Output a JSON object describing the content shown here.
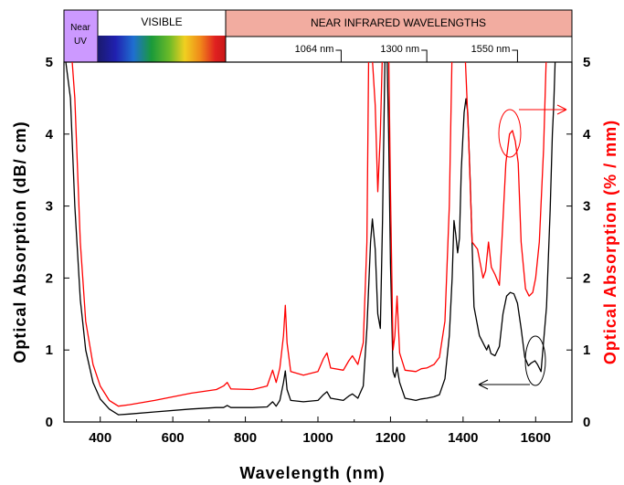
{
  "chart_data": {
    "type": "line",
    "xlabel": "Wavelength (nm)",
    "ylabel_left": "Optical Absorption (dB/ cm)",
    "ylabel_right": "Optical Absorption (% / mm)",
    "xlim": [
      300,
      1700
    ],
    "ylim_left": [
      0,
      5
    ],
    "ylim_right": [
      0,
      5
    ],
    "x_ticks": [
      "400",
      "600",
      "800",
      "1000",
      "1200",
      "1400",
      "1600"
    ],
    "y_ticks_left": [
      "0",
      "1",
      "2",
      "3",
      "4",
      "5"
    ],
    "y_ticks_right": [
      "0",
      "1",
      "2",
      "3",
      "4",
      "5"
    ],
    "grid": false,
    "bands": [
      {
        "label": "Near UV",
        "range": [
          300,
          345
        ],
        "color": "#cc99ff"
      },
      {
        "label": "VISIBLE",
        "range": [
          345,
          750
        ],
        "spectrum": true
      },
      {
        "label": "NEAR INFRARED WAVELENGTHS",
        "range": [
          750,
          1700
        ],
        "color": "#f2aca0"
      }
    ],
    "wavelength_markers": [
      {
        "label": "1064 nm",
        "x": 1064
      },
      {
        "label": "1300 nm",
        "x": 1300
      },
      {
        "label": "1550 nm",
        "x": 1550
      }
    ],
    "series": [
      {
        "color": "#000000",
        "axis": "left",
        "points": [
          [
            300,
            5.2
          ],
          [
            318,
            4.5
          ],
          [
            330,
            3.0
          ],
          [
            345,
            1.7
          ],
          [
            360,
            1.0
          ],
          [
            380,
            0.55
          ],
          [
            400,
            0.32
          ],
          [
            425,
            0.18
          ],
          [
            450,
            0.1
          ],
          [
            480,
            0.11
          ],
          [
            550,
            0.14
          ],
          [
            650,
            0.18
          ],
          [
            720,
            0.2
          ],
          [
            740,
            0.2
          ],
          [
            750,
            0.23
          ],
          [
            760,
            0.2
          ],
          [
            820,
            0.2
          ],
          [
            860,
            0.21
          ],
          [
            875,
            0.28
          ],
          [
            885,
            0.22
          ],
          [
            895,
            0.3
          ],
          [
            905,
            0.55
          ],
          [
            910,
            0.71
          ],
          [
            915,
            0.45
          ],
          [
            925,
            0.3
          ],
          [
            960,
            0.28
          ],
          [
            1000,
            0.3
          ],
          [
            1015,
            0.38
          ],
          [
            1025,
            0.42
          ],
          [
            1035,
            0.33
          ],
          [
            1070,
            0.3
          ],
          [
            1085,
            0.36
          ],
          [
            1095,
            0.39
          ],
          [
            1110,
            0.33
          ],
          [
            1125,
            0.5
          ],
          [
            1135,
            1.3
          ],
          [
            1145,
            2.5
          ],
          [
            1150,
            2.82
          ],
          [
            1158,
            2.4
          ],
          [
            1165,
            1.5
          ],
          [
            1172,
            1.3
          ],
          [
            1178,
            2.8
          ],
          [
            1185,
            5.2
          ],
          [
            1190,
            5.2
          ],
          [
            1195,
            4.0
          ],
          [
            1200,
            2.2
          ],
          [
            1207,
            0.7
          ],
          [
            1212,
            0.62
          ],
          [
            1218,
            0.76
          ],
          [
            1225,
            0.55
          ],
          [
            1240,
            0.33
          ],
          [
            1270,
            0.3
          ],
          [
            1285,
            0.32
          ],
          [
            1300,
            0.33
          ],
          [
            1320,
            0.35
          ],
          [
            1335,
            0.38
          ],
          [
            1350,
            0.6
          ],
          [
            1362,
            1.2
          ],
          [
            1370,
            2.0
          ],
          [
            1375,
            2.8
          ],
          [
            1380,
            2.6
          ],
          [
            1385,
            2.35
          ],
          [
            1390,
            2.55
          ],
          [
            1395,
            3.5
          ],
          [
            1403,
            4.3
          ],
          [
            1408,
            4.49
          ],
          [
            1413,
            4.3
          ],
          [
            1420,
            3.3
          ],
          [
            1430,
            1.6
          ],
          [
            1445,
            1.2
          ],
          [
            1460,
            1.05
          ],
          [
            1465,
            1.0
          ],
          [
            1470,
            1.07
          ],
          [
            1477,
            0.95
          ],
          [
            1488,
            0.92
          ],
          [
            1500,
            1.05
          ],
          [
            1510,
            1.5
          ],
          [
            1520,
            1.75
          ],
          [
            1530,
            1.8
          ],
          [
            1540,
            1.78
          ],
          [
            1550,
            1.65
          ],
          [
            1560,
            1.3
          ],
          [
            1570,
            0.9
          ],
          [
            1580,
            0.78
          ],
          [
            1588,
            0.82
          ],
          [
            1598,
            0.85
          ],
          [
            1605,
            0.8
          ],
          [
            1615,
            0.7
          ],
          [
            1630,
            1.6
          ],
          [
            1640,
            2.95
          ],
          [
            1646,
            4.0
          ],
          [
            1650,
            4.4
          ],
          [
            1655,
            5.2
          ]
        ]
      },
      {
        "color": "#ff0000",
        "axis": "right",
        "points": [
          [
            300,
            5.2
          ],
          [
            320,
            5.2
          ],
          [
            330,
            4.5
          ],
          [
            345,
            2.5
          ],
          [
            360,
            1.4
          ],
          [
            380,
            0.8
          ],
          [
            400,
            0.5
          ],
          [
            425,
            0.3
          ],
          [
            450,
            0.22
          ],
          [
            480,
            0.24
          ],
          [
            550,
            0.3
          ],
          [
            650,
            0.4
          ],
          [
            720,
            0.45
          ],
          [
            740,
            0.5
          ],
          [
            750,
            0.55
          ],
          [
            760,
            0.46
          ],
          [
            820,
            0.45
          ],
          [
            860,
            0.5
          ],
          [
            875,
            0.72
          ],
          [
            885,
            0.55
          ],
          [
            895,
            0.75
          ],
          [
            905,
            1.2
          ],
          [
            910,
            1.62
          ],
          [
            915,
            1.1
          ],
          [
            925,
            0.7
          ],
          [
            960,
            0.65
          ],
          [
            1000,
            0.7
          ],
          [
            1015,
            0.88
          ],
          [
            1025,
            0.96
          ],
          [
            1035,
            0.75
          ],
          [
            1070,
            0.72
          ],
          [
            1085,
            0.85
          ],
          [
            1095,
            0.92
          ],
          [
            1110,
            0.8
          ],
          [
            1125,
            1.1
          ],
          [
            1135,
            2.5
          ],
          [
            1140,
            5.2
          ],
          [
            1148,
            5.2
          ],
          [
            1158,
            4.4
          ],
          [
            1165,
            3.2
          ],
          [
            1172,
            4.0
          ],
          [
            1178,
            5.2
          ],
          [
            1195,
            5.2
          ],
          [
            1200,
            3.2
          ],
          [
            1207,
            1.0
          ],
          [
            1212,
            1.2
          ],
          [
            1218,
            1.75
          ],
          [
            1225,
            0.96
          ],
          [
            1240,
            0.72
          ],
          [
            1270,
            0.7
          ],
          [
            1285,
            0.74
          ],
          [
            1300,
            0.75
          ],
          [
            1320,
            0.8
          ],
          [
            1335,
            0.9
          ],
          [
            1350,
            1.4
          ],
          [
            1362,
            3.0
          ],
          [
            1370,
            5.2
          ],
          [
            1405,
            5.2
          ],
          [
            1415,
            4.0
          ],
          [
            1425,
            2.5
          ],
          [
            1440,
            2.4
          ],
          [
            1455,
            2.0
          ],
          [
            1462,
            2.1
          ],
          [
            1470,
            2.5
          ],
          [
            1478,
            2.15
          ],
          [
            1488,
            2.05
          ],
          [
            1500,
            1.9
          ],
          [
            1508,
            2.6
          ],
          [
            1518,
            3.6
          ],
          [
            1528,
            4.0
          ],
          [
            1536,
            4.05
          ],
          [
            1544,
            3.9
          ],
          [
            1552,
            3.6
          ],
          [
            1560,
            2.5
          ],
          [
            1572,
            1.85
          ],
          [
            1582,
            1.75
          ],
          [
            1592,
            1.8
          ],
          [
            1600,
            2.0
          ],
          [
            1610,
            2.5
          ],
          [
            1622,
            3.8
          ],
          [
            1630,
            5.2
          ]
        ]
      }
    ],
    "annotations": [
      {
        "type": "ellipse-arrow",
        "series": "red",
        "points_to": "right axis",
        "at": [
          1530,
          4.05
        ]
      },
      {
        "type": "ellipse-arrow",
        "series": "black",
        "points_to": "left axis",
        "at": [
          1600,
          0.85
        ]
      }
    ]
  }
}
